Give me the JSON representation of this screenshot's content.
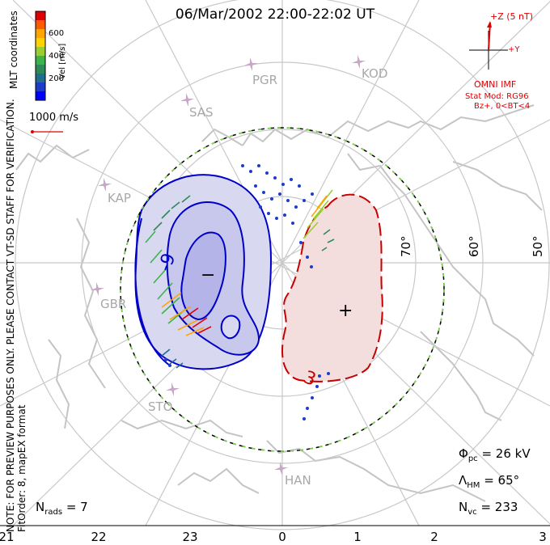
{
  "title": "06/Mar/2002 22:00-22:02 UT",
  "side_note": "NOTE: FOR PREVIEW PURPOSES ONLY. PLEASE CONTACT VT-SD STAFF FOR VERIFICATION.",
  "fit_order": "FitOrder: 8, mapEX format",
  "coord_label": "MLT coordinates",
  "colorbar": {
    "label": "Vel [m/s]",
    "ticks": [
      "600",
      "400",
      "200"
    ],
    "colors": [
      "#e00000",
      "#ff5a00",
      "#ffa500",
      "#ffd200",
      "#9acd32",
      "#3cb44b",
      "#2e8b57",
      "#1e6e8c",
      "#1e3cc8",
      "#0000ff"
    ]
  },
  "scale": {
    "label": "1000 m/s"
  },
  "imf": {
    "z_label": "+Z (5 nT)",
    "y_label": "+Y",
    "source": "OMNI IMF",
    "model": "Stat Mod: RG96",
    "condition": "Bz+, 0<BT<4"
  },
  "stats": {
    "phi_pc_symbol": "Φ",
    "phi_pc_sub": "pc",
    "phi_pc_value": "= 26 kV",
    "hm_symbol": "Λ",
    "hm_sub": "HM",
    "hm_value": "= 65°",
    "nvc_symbol": "N",
    "nvc_sub": "vc",
    "nvc_value": "= 233",
    "nrads_symbol": "N",
    "nrads_sub": "rads",
    "nrads_value": "= 7"
  },
  "mlt_ticks": [
    "21",
    "22",
    "23",
    "0",
    "1",
    "2",
    "3"
  ],
  "lat_labels": [
    "70°",
    "60°",
    "50°"
  ],
  "contour_labels": {
    "neg": "-9",
    "pos": "3",
    "min_mark": "−",
    "max_mark": "+"
  },
  "stations": [
    "PGR",
    "KOD",
    "SAS",
    "KAP",
    "GBR",
    "STO",
    "HAN"
  ],
  "colors": {
    "neg_fill": "#d8d8f0",
    "neg_fill_inner": "#b4b4e8",
    "neg_line": "#0000c8",
    "pos_fill": "#f4dedd",
    "pos_line": "#c80000",
    "grid": "#c8c8c8",
    "boundary_dash": "#7cd64a"
  }
}
